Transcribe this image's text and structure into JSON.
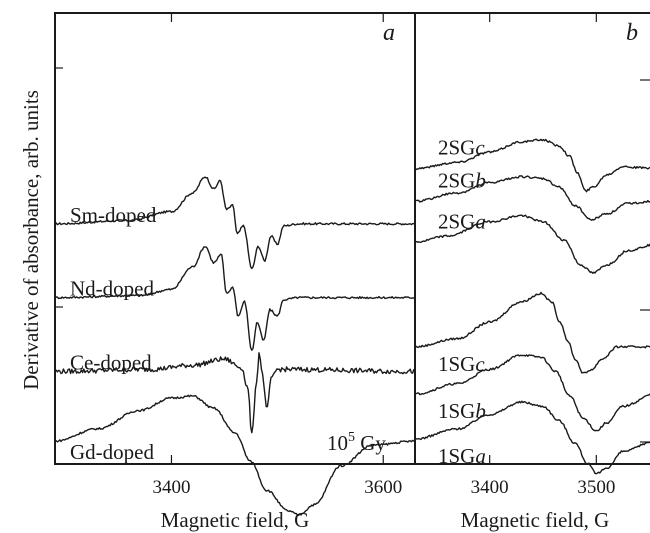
{
  "chart_data": [
    {
      "panel": "a",
      "type": "line",
      "xlabel": "Magnetic field, G",
      "ylabel": "Derivative of absorbance, arb. units",
      "xlim": [
        3290,
        3630
      ],
      "xticks": [
        3400,
        3600
      ],
      "annotation_text": "10",
      "annotation_sup": "5",
      "annotation_unit": " Gy",
      "series": [
        {
          "name": "Sm-doped",
          "offset": 6.2,
          "points": [
            [
              3290,
              0
            ],
            [
              3360,
              0.08
            ],
            [
              3400,
              0.3
            ],
            [
              3420,
              0.75
            ],
            [
              3432,
              1.15
            ],
            [
              3440,
              0.85
            ],
            [
              3446,
              1.05
            ],
            [
              3452,
              0.35
            ],
            [
              3458,
              0.45
            ],
            [
              3462,
              -0.25
            ],
            [
              3468,
              -0.05
            ],
            [
              3476,
              -1.1
            ],
            [
              3482,
              -0.55
            ],
            [
              3488,
              -0.9
            ],
            [
              3494,
              -0.3
            ],
            [
              3500,
              -0.5
            ],
            [
              3506,
              -0.05
            ],
            [
              3520,
              0
            ],
            [
              3630,
              0
            ]
          ]
        },
        {
          "name": "Nd-doped",
          "offset": 4.4,
          "points": [
            [
              3290,
              0
            ],
            [
              3370,
              0.05
            ],
            [
              3400,
              0.2
            ],
            [
              3420,
              0.75
            ],
            [
              3432,
              1.25
            ],
            [
              3440,
              0.85
            ],
            [
              3447,
              1.05
            ],
            [
              3452,
              0.1
            ],
            [
              3458,
              0.25
            ],
            [
              3463,
              -0.45
            ],
            [
              3469,
              -0.1
            ],
            [
              3476,
              -1.3
            ],
            [
              3481,
              -0.6
            ],
            [
              3487,
              -1.05
            ],
            [
              3493,
              -0.3
            ],
            [
              3500,
              -0.45
            ],
            [
              3506,
              -0.05
            ],
            [
              3520,
              0
            ],
            [
              3630,
              0
            ]
          ]
        },
        {
          "name": "Ce-doped",
          "offset": 2.6,
          "points": [
            [
              3290,
              0
            ],
            [
              3380,
              0.05
            ],
            [
              3420,
              0.15
            ],
            [
              3450,
              0.3
            ],
            [
              3466,
              0.1
            ],
            [
              3472,
              -0.4
            ],
            [
              3476,
              -1.55
            ],
            [
              3480,
              -0.3
            ],
            [
              3483,
              0.45
            ],
            [
              3486,
              -0.1
            ],
            [
              3490,
              -0.95
            ],
            [
              3494,
              -0.2
            ],
            [
              3500,
              0.05
            ],
            [
              3630,
              0
            ]
          ]
        },
        {
          "name": "Gd-doped",
          "offset": 0.9,
          "points": [
            [
              3290,
              0
            ],
            [
              3330,
              0.3
            ],
            [
              3370,
              0.75
            ],
            [
              3400,
              1.05
            ],
            [
              3420,
              1.1
            ],
            [
              3440,
              0.8
            ],
            [
              3460,
              0.2
            ],
            [
              3475,
              -0.5
            ],
            [
              3490,
              -1.2
            ],
            [
              3510,
              -1.7
            ],
            [
              3520,
              -1.8
            ],
            [
              3535,
              -1.55
            ],
            [
              3560,
              -0.6
            ],
            [
              3590,
              -0.1
            ],
            [
              3630,
              0
            ]
          ]
        }
      ]
    },
    {
      "panel": "b",
      "type": "line",
      "xlabel": "Magnetic field, G",
      "ylabel": "",
      "xlim": [
        3330,
        3555
      ],
      "xticks": [
        3400,
        3500
      ],
      "series": [
        {
          "name_prefix": "2SG",
          "name_suffix": "c",
          "offset": 7.55,
          "points": [
            [
              3330,
              0
            ],
            [
              3370,
              0.15
            ],
            [
              3400,
              0.4
            ],
            [
              3430,
              0.65
            ],
            [
              3450,
              0.7
            ],
            [
              3465,
              0.55
            ],
            [
              3475,
              0.3
            ],
            [
              3482,
              -0.1
            ],
            [
              3490,
              -0.55
            ],
            [
              3497,
              -0.45
            ],
            [
              3510,
              -0.15
            ],
            [
              3525,
              0.05
            ],
            [
              3540,
              0.02
            ],
            [
              3555,
              0
            ]
          ]
        },
        {
          "name_prefix": "2SG",
          "name_suffix": "b",
          "offset": 6.75,
          "points": [
            [
              3330,
              0
            ],
            [
              3370,
              0.2
            ],
            [
              3400,
              0.45
            ],
            [
              3430,
              0.6
            ],
            [
              3450,
              0.55
            ],
            [
              3465,
              0.35
            ],
            [
              3480,
              -0.1
            ],
            [
              3495,
              -0.45
            ],
            [
              3510,
              -0.3
            ],
            [
              3530,
              -0.05
            ],
            [
              3555,
              0
            ]
          ]
        },
        {
          "name_prefix": "2SG",
          "name_suffix": "a",
          "offset": 5.75,
          "points": [
            [
              3330,
              0
            ],
            [
              3360,
              0.15
            ],
            [
              3400,
              0.5
            ],
            [
              3430,
              0.65
            ],
            [
              3450,
              0.5
            ],
            [
              3470,
              0.05
            ],
            [
              3485,
              -0.55
            ],
            [
              3497,
              -0.75
            ],
            [
              3510,
              -0.55
            ],
            [
              3530,
              -0.2
            ],
            [
              3555,
              -0.05
            ]
          ]
        },
        {
          "name_prefix": "1SG",
          "name_suffix": "c",
          "offset": 3.2,
          "points": [
            [
              3330,
              0
            ],
            [
              3370,
              0.2
            ],
            [
              3400,
              0.6
            ],
            [
              3430,
              1.1
            ],
            [
              3448,
              1.3
            ],
            [
              3458,
              1.1
            ],
            [
              3466,
              0.6
            ],
            [
              3474,
              0.1
            ],
            [
              3480,
              -0.3
            ],
            [
              3488,
              -0.65
            ],
            [
              3496,
              -0.55
            ],
            [
              3505,
              -0.3
            ],
            [
              3520,
              0
            ],
            [
              3555,
              0
            ]
          ]
        },
        {
          "name_prefix": "1SG",
          "name_suffix": "b",
          "offset": 2.05,
          "points": [
            [
              3330,
              0
            ],
            [
              3370,
              0.25
            ],
            [
              3400,
              0.6
            ],
            [
              3430,
              0.95
            ],
            [
              3448,
              0.9
            ],
            [
              3462,
              0.55
            ],
            [
              3475,
              -0.05
            ],
            [
              3488,
              -0.6
            ],
            [
              3500,
              -0.9
            ],
            [
              3510,
              -0.7
            ],
            [
              3525,
              -0.3
            ],
            [
              3555,
              0
            ]
          ]
        },
        {
          "name_prefix": "1SG",
          "name_suffix": "a",
          "offset": 0.95,
          "points": [
            [
              3330,
              0
            ],
            [
              3370,
              0.25
            ],
            [
              3400,
              0.6
            ],
            [
              3430,
              0.9
            ],
            [
              3450,
              0.8
            ],
            [
              3465,
              0.45
            ],
            [
              3480,
              -0.1
            ],
            [
              3492,
              -0.6
            ],
            [
              3500,
              -0.85
            ],
            [
              3510,
              -0.7
            ],
            [
              3525,
              -0.3
            ],
            [
              3555,
              -0.05
            ]
          ]
        }
      ]
    }
  ]
}
